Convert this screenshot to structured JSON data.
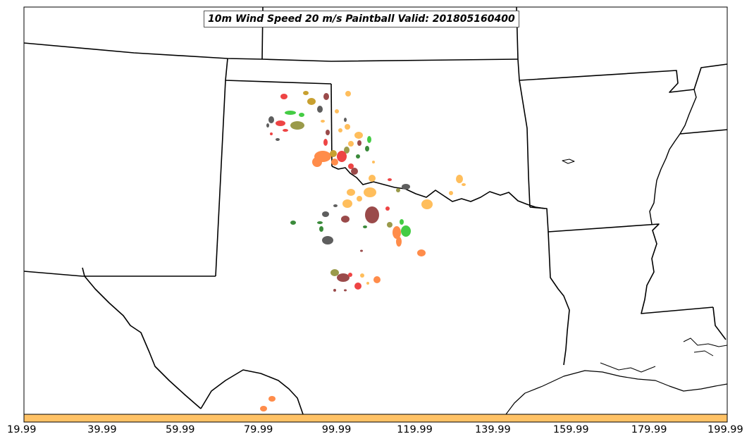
{
  "title": "10m Wind Speed 20 m/s Paintball Valid: 201805160400",
  "colorbar": {
    "fill_color": "#ffc266",
    "tick_labels": [
      "19.99",
      "39.99",
      "59.99",
      "79.99",
      "99.99",
      "119.99",
      "139.99",
      "159.99",
      "179.99",
      "199.99"
    ]
  },
  "paint_colors": {
    "orange": "#ff8c4a",
    "light_orange": "#ffbe5c",
    "red": "#ee4444",
    "green": "#44cc44",
    "dark_green": "#3a8a3a",
    "olive": "#9a9a4a",
    "gold": "#c8a030",
    "brown": "#9a4a4a",
    "gray": "#5e5e5e"
  }
}
